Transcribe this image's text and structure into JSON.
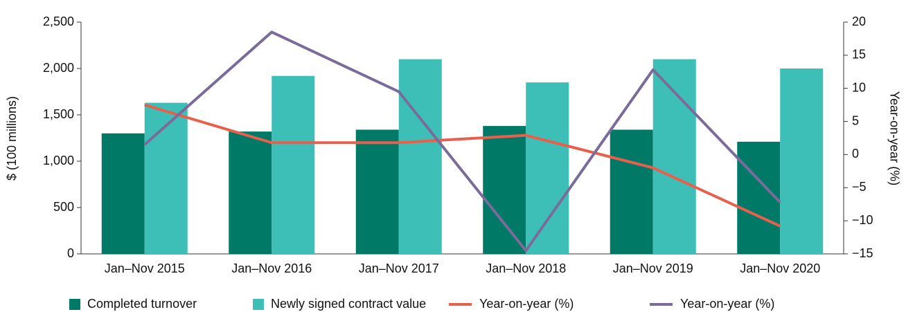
{
  "chart_data": {
    "type": "bar",
    "categories": [
      "Jan–Nov 2015",
      "Jan–Nov 2016",
      "Jan–Nov 2017",
      "Jan–Nov 2018",
      "Jan–Nov 2019",
      "Jan–Nov 2020"
    ],
    "series": [
      {
        "name": "Completed turnover",
        "color": "#007a67",
        "type": "bar",
        "values": [
          1300,
          1320,
          1340,
          1380,
          1340,
          1210
        ]
      },
      {
        "name": "Newly signed contract value",
        "color": "#3dbfb8",
        "type": "bar",
        "values": [
          1630,
          1920,
          2100,
          1850,
          2100,
          2000
        ]
      },
      {
        "name": "Year-on-year (%)",
        "color": "#e8604c",
        "type": "line",
        "axis": "y2",
        "values": [
          7.5,
          1.8,
          1.8,
          2.9,
          -2,
          -10.8
        ]
      },
      {
        "name": "Year-on-year (%)",
        "color": "#7b6b9a",
        "type": "line",
        "axis": "y2",
        "values": [
          1.5,
          18.5,
          9.5,
          -14.5,
          12.8,
          -7.2
        ]
      }
    ],
    "ylabel": "$ (100 millions)",
    "y2label": "Year-on-year (%)",
    "ylim": [
      0,
      2500
    ],
    "yticks": [
      0,
      500,
      {
        "value": 1000,
        "label": "1,000"
      },
      {
        "value": 1500,
        "label": "1,500"
      },
      {
        "value": 2000,
        "label": "2,000"
      },
      {
        "value": 2500,
        "label": "2,500"
      }
    ],
    "y2lim": [
      -15,
      20
    ],
    "y2ticks": [
      {
        "value": -15,
        "label": "−15"
      },
      {
        "value": -10,
        "label": "−10"
      },
      {
        "value": -5,
        "label": "−5"
      },
      0,
      5,
      10,
      15,
      20
    ],
    "legend": "bottom"
  }
}
